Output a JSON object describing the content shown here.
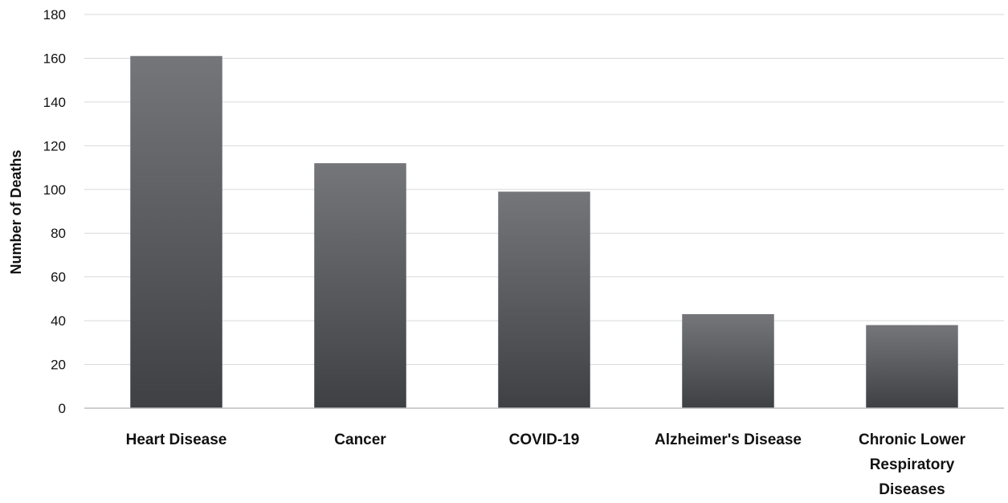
{
  "chart_data": {
    "type": "bar",
    "categories": [
      "Heart Disease",
      "Cancer",
      "COVID-19",
      "Alzheimer's Disease",
      "Chronic Lower Respiratory Diseases"
    ],
    "category_lines": [
      [
        "Heart Disease"
      ],
      [
        "Cancer"
      ],
      [
        "COVID-19"
      ],
      [
        "Alzheimer's Disease"
      ],
      [
        "Chronic Lower",
        "Respiratory",
        "Diseases"
      ]
    ],
    "values": [
      161,
      112,
      99,
      43,
      38
    ],
    "title": "",
    "xlabel": "",
    "ylabel": "Number of Deaths",
    "ylim": [
      0,
      180
    ],
    "yticks": [
      0,
      20,
      40,
      60,
      80,
      100,
      120,
      140,
      160,
      180
    ],
    "grid": true,
    "legend": "none",
    "colors": {
      "bar_top": "#75767a",
      "bar_bottom": "#3e4044",
      "grid": "#d9d9d9",
      "axis": "#bfbfbf"
    }
  }
}
